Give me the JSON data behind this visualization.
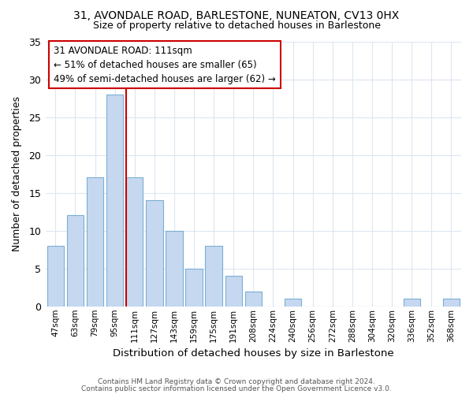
{
  "title1": "31, AVONDALE ROAD, BARLESTONE, NUNEATON, CV13 0HX",
  "title2": "Size of property relative to detached houses in Barlestone",
  "xlabel": "Distribution of detached houses by size in Barlestone",
  "ylabel": "Number of detached properties",
  "categories": [
    "47sqm",
    "63sqm",
    "79sqm",
    "95sqm",
    "111sqm",
    "127sqm",
    "143sqm",
    "159sqm",
    "175sqm",
    "191sqm",
    "208sqm",
    "224sqm",
    "240sqm",
    "256sqm",
    "272sqm",
    "288sqm",
    "304sqm",
    "320sqm",
    "336sqm",
    "352sqm",
    "368sqm"
  ],
  "values": [
    8,
    12,
    17,
    28,
    17,
    14,
    10,
    5,
    8,
    4,
    2,
    0,
    1,
    0,
    0,
    0,
    0,
    0,
    1,
    0,
    1
  ],
  "bar_color": "#c5d8f0",
  "bar_edge_color": "#7bafd4",
  "vline_color": "#cc0000",
  "vline_index": 4,
  "annotation_line1": "31 AVONDALE ROAD: 111sqm",
  "annotation_line2": "← 51% of detached houses are smaller (65)",
  "annotation_line3": "49% of semi-detached houses are larger (62) →",
  "annotation_box_edgecolor": "#cc0000",
  "ylim": [
    0,
    35
  ],
  "yticks": [
    0,
    5,
    10,
    15,
    20,
    25,
    30,
    35
  ],
  "footer1": "Contains HM Land Registry data © Crown copyright and database right 2024.",
  "footer2": "Contains public sector information licensed under the Open Government Licence v3.0.",
  "background_color": "#ffffff",
  "grid_color": "#dce6f0"
}
